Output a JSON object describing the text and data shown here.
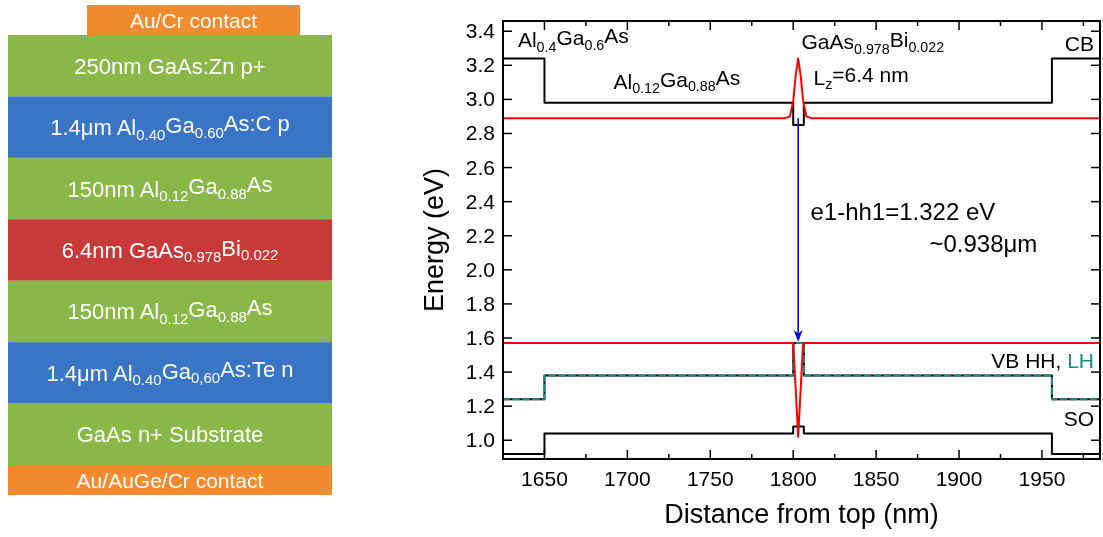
{
  "chart_data": [
    {
      "type": "other",
      "annotations": [
        "Au/Cr contact",
        "250nm GaAs:Zn p+",
        "1.4μm Al$_{0.40}$Ga$_{0.60}$As:C p",
        "150nm Al$_{0.12}$Ga$_{0.88}$As",
        "6.4nm GaAs$_{0.978}$Bi$_{0.022}$",
        "150nm Al$_{0.12}$Ga$_{0.88}$As",
        "1.4μm Al$_{0.40}$Ga$_{0,60}$As:Te n",
        "GaAs n+ Substrate",
        "Au/AuGe/Cr contact"
      ],
      "colors": [
        "#f28a2e",
        "#8ab848",
        "#3a74c4",
        "#8ab848",
        "#c83a3a",
        "#8ab848",
        "#3a74c4",
        "#8ab848",
        "#f28a2e"
      ]
    },
    {
      "type": "line",
      "xlabel": "Distance from top (nm)",
      "ylabel": "Energy (eV)",
      "xlim": [
        1625,
        1985
      ],
      "ylim": [
        0.89,
        3.46
      ],
      "xticks": [
        1650,
        {
          "value": 1675,
          "label": null
        },
        1700,
        {
          "value": 1725,
          "label": null
        },
        1750,
        {
          "value": 1775,
          "label": null
        },
        1800,
        {
          "value": 1825,
          "label": null
        },
        1850,
        {
          "value": 1875,
          "label": null
        },
        1900,
        {
          "value": 1925,
          "label": null
        },
        1950,
        {
          "value": 1975,
          "label": null
        }
      ],
      "yticks": [
        {
          "value": 1,
          "label": "1.0"
        },
        1.2,
        1.4,
        1.6,
        1.8,
        {
          "value": 2,
          "label": "2.0"
        },
        2.2,
        2.4,
        2.6,
        2.8,
        {
          "value": 3,
          "label": "3.0"
        },
        3.2,
        3.4
      ],
      "grid": false,
      "marker": "none",
      "legend": "right",
      "series": [
        {
          "name": "CB",
          "color": "#000000",
          "x": [
            1625,
            1650,
            1650,
            1800,
            1800,
            1806.4,
            1806.4,
            1956,
            1956,
            1985
          ],
          "values": [
            3.24,
            3.24,
            2.98,
            2.98,
            2.85,
            2.85,
            2.98,
            2.98,
            3.24,
            3.24
          ]
        },
        {
          "name": "VB HH,",
          "color": "#000000",
          "x": [
            1625,
            1650,
            1650,
            1800,
            1800,
            1806.4,
            1806.4,
            1956,
            1956,
            1985
          ],
          "values": [
            1.24,
            1.24,
            1.38,
            1.38,
            1.57,
            1.57,
            1.38,
            1.38,
            1.24,
            1.24
          ]
        },
        {
          "name": "LH",
          "color": "#1a8a8a",
          "line_style": "dashed",
          "x": [
            1625,
            1650,
            1650,
            1800,
            1800,
            1806.4,
            1806.4,
            1956,
            1956,
            1985
          ],
          "values": [
            1.24,
            1.24,
            1.38,
            1.38,
            1.57,
            1.57,
            1.38,
            1.38,
            1.24,
            1.24
          ]
        },
        {
          "name": "SO",
          "color": "#000000",
          "x": [
            1625,
            1650,
            1650,
            1800,
            1800,
            1806.4,
            1806.4,
            1956,
            1956,
            1985
          ],
          "values": [
            0.92,
            0.92,
            1.04,
            1.04,
            1.08,
            1.08,
            1.04,
            1.04,
            0.92,
            0.92
          ]
        },
        {
          "color": "#ff0000",
          "x": [
            1625,
            1795,
            1798,
            1800,
            1801.5,
            1803,
            1804.5,
            1806,
            1808,
            1811,
            1985
          ],
          "values": [
            2.89,
            2.89,
            2.9,
            2.99,
            3.14,
            3.24,
            3.14,
            2.99,
            2.9,
            2.89,
            2.89
          ]
        },
        {
          "color": "#ff0000",
          "x": [
            1625,
            1800,
            1801.5,
            1803,
            1804.5,
            1806,
            1985
          ],
          "values": [
            1.57,
            1.57,
            1.3,
            1.02,
            1.3,
            1.57,
            1.57
          ]
        }
      ],
      "annotations": [
        "Al$_{0.4}$Ga$_{0.6}$As",
        "Al$_{0.12}$Ga$_{0.88}$As",
        "GaAs$_{0.978}$Bi$_{0.022}$",
        "L$_{z}$=6.4 nm",
        "e1-hh1=1.322 eV",
        "~0.938μm"
      ]
    }
  ]
}
